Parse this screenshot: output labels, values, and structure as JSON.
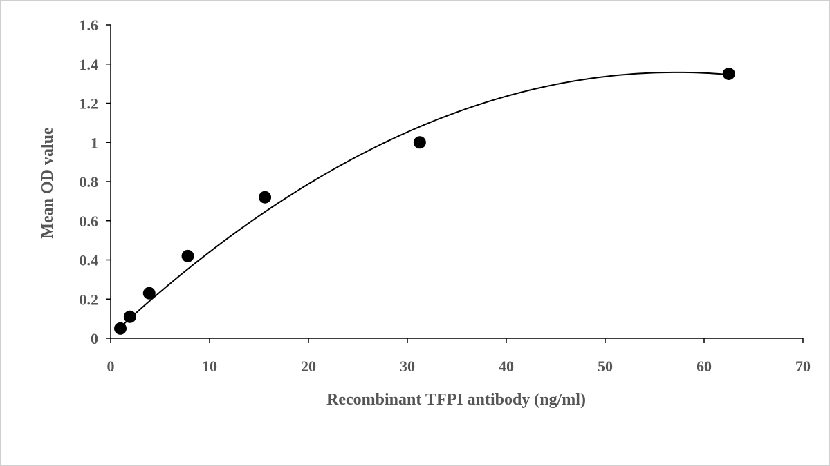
{
  "chart_data": {
    "type": "scatter",
    "title": "",
    "xlabel": "Recombinant TFPI antibody (ng/ml)",
    "ylabel": "Mean OD value",
    "xlim": [
      0,
      70
    ],
    "ylim": [
      0,
      1.6
    ],
    "xticks": [
      0,
      10,
      20,
      30,
      40,
      50,
      60,
      70
    ],
    "yticks": [
      0,
      0.2,
      0.4,
      0.6,
      0.8,
      1,
      1.2,
      1.4,
      1.6
    ],
    "xtick_labels": [
      "0",
      "10",
      "20",
      "30",
      "40",
      "50",
      "60",
      "70"
    ],
    "ytick_labels": [
      "0",
      "0.2",
      "0.4",
      "0.6",
      "0.8",
      "1",
      "1.2",
      "1.4",
      "1.6"
    ],
    "grid": false,
    "legend": "none",
    "series": [
      {
        "name": "Mean OD",
        "mode": "markers",
        "x": [
          0.98,
          1.95,
          3.9,
          7.8,
          15.6,
          31.25,
          62.5
        ],
        "y": [
          0.05,
          0.11,
          0.23,
          0.42,
          0.72,
          1.0,
          1.35
        ]
      },
      {
        "name": "Fitted curve",
        "mode": "line",
        "fit": "quadratic",
        "x_range": [
          0.98,
          62.5
        ],
        "coefficients": [
          0.0114,
          0.04704,
          -0.000411
        ]
      }
    ],
    "colors": {
      "marker": "#000000",
      "curve": "#000000",
      "axis": "#000000",
      "text": "#555555"
    }
  }
}
